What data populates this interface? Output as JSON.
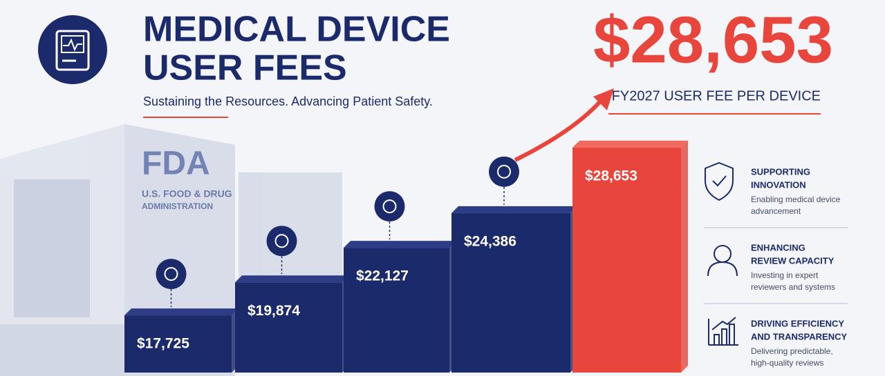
{
  "header": {
    "title_lines": [
      "MEDICAL DEVICE",
      "USER FEES"
    ],
    "subtitle": "Sustaining the Resources. Advancing Patient Safety."
  },
  "headline": {
    "amount": "$28,653",
    "caption": "FY2027 USER FEE PER DEVICE"
  },
  "building": {
    "logo": "FDA",
    "name_lines": [
      "U.S. FOOD & DRUG",
      "ADMINISTRATION"
    ]
  },
  "chart_data": {
    "type": "bar",
    "categories": [
      null,
      null,
      null,
      null,
      null
    ],
    "values": [
      17725,
      19874,
      22127,
      24386,
      28653
    ],
    "value_labels": [
      "$17,725",
      "$19,874",
      "$22,127",
      "$24,386",
      "$28,653"
    ],
    "colors": [
      "#1b2a6b",
      "#1b2a6b",
      "#1b2a6b",
      "#1b2a6b",
      "#e8453c"
    ],
    "ylim": [
      14000,
      29500
    ]
  },
  "panel": {
    "items": [
      {
        "title_lines": [
          "SUPPORTING",
          "INNOVATION"
        ],
        "desc_lines": [
          "Enabling medical device",
          "advancement"
        ]
      },
      {
        "title_lines": [
          "ENHANCING",
          "REVIEW CAPACITY"
        ],
        "desc_lines": [
          "Investing in expert",
          "reviewers and systems"
        ]
      },
      {
        "title_lines": [
          "DRIVING EFFICIENCY",
          "AND TRANSPARENCY"
        ],
        "desc_lines": [
          "Delivering predictable,",
          "high-quality reviews"
        ]
      }
    ]
  }
}
